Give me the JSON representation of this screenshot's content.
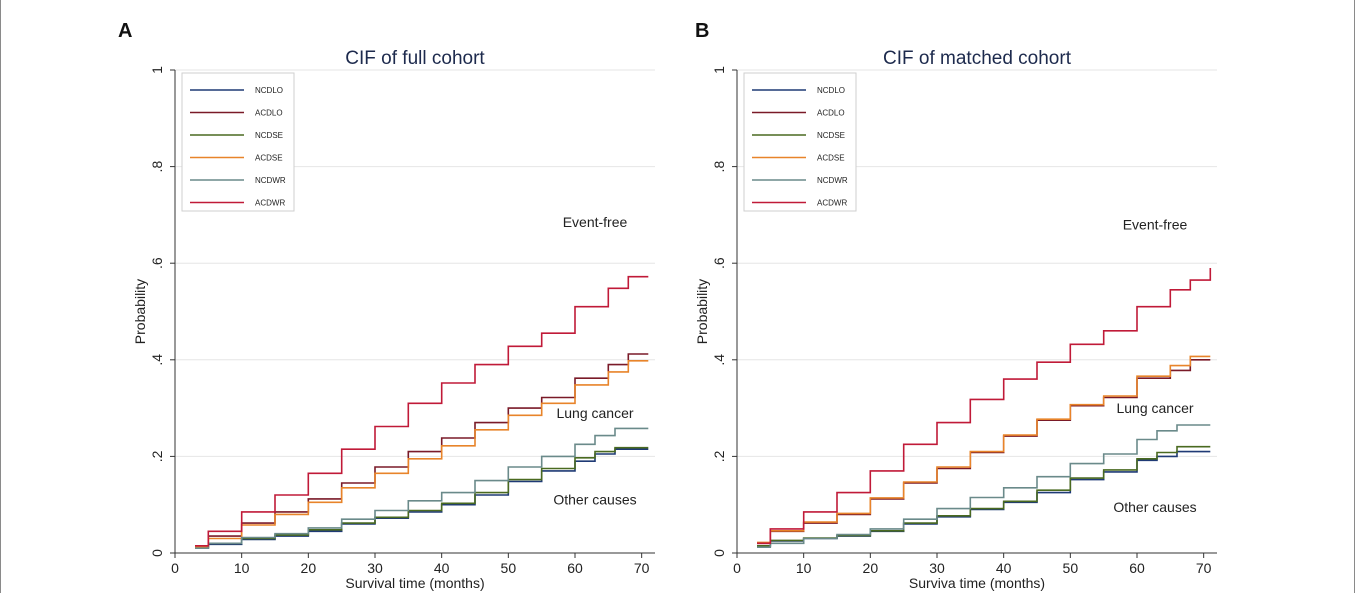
{
  "panels": [
    {
      "letter": "A"
    },
    {
      "letter": "B"
    }
  ],
  "chart_data": [
    {
      "type": "line",
      "step": true,
      "title": "CIF of full cohort",
      "xlabel": "Survival time (months)",
      "ylabel": "Probability",
      "xlim": [
        0,
        72
      ],
      "ylim": [
        0,
        1
      ],
      "xticks": [
        0,
        10,
        20,
        30,
        40,
        50,
        60,
        70
      ],
      "xtick_labels": [
        "0",
        "10",
        "20",
        "30",
        "40",
        "50",
        "60",
        "70"
      ],
      "yticks": [
        0,
        0.2,
        0.4,
        0.6,
        0.8,
        1
      ],
      "ytick_labels": [
        "0",
        ".2",
        ".4",
        ".6",
        ".8",
        "1"
      ],
      "grid": "horizontal",
      "legend_position": "top-left",
      "annotations": [
        {
          "text": "Event-free",
          "x": 61.5,
          "y": 0.675
        },
        {
          "text": "Lung cancer",
          "x": 61.5,
          "y": 0.28
        },
        {
          "text": "Other causes",
          "x": 61.5,
          "y": 0.1
        }
      ],
      "series": [
        {
          "name": "NCDLO",
          "color": "#1f3a75",
          "points": [
            [
              3,
              0.01
            ],
            [
              5,
              0.018
            ],
            [
              10,
              0.028
            ],
            [
              15,
              0.035
            ],
            [
              20,
              0.045
            ],
            [
              25,
              0.06
            ],
            [
              30,
              0.072
            ],
            [
              35,
              0.085
            ],
            [
              40,
              0.1
            ],
            [
              45,
              0.12
            ],
            [
              50,
              0.148
            ],
            [
              55,
              0.17
            ],
            [
              60,
              0.19
            ],
            [
              63,
              0.205
            ],
            [
              66,
              0.215
            ],
            [
              71,
              0.215
            ]
          ]
        },
        {
          "name": "ACDLO",
          "color": "#7a1a28",
          "points": [
            [
              3,
              0.012
            ],
            [
              5,
              0.035
            ],
            [
              10,
              0.062
            ],
            [
              15,
              0.085
            ],
            [
              20,
              0.112
            ],
            [
              25,
              0.145
            ],
            [
              30,
              0.178
            ],
            [
              35,
              0.21
            ],
            [
              40,
              0.238
            ],
            [
              45,
              0.27
            ],
            [
              50,
              0.3
            ],
            [
              55,
              0.322
            ],
            [
              60,
              0.362
            ],
            [
              65,
              0.39
            ],
            [
              68,
              0.412
            ],
            [
              71,
              0.412
            ]
          ]
        },
        {
          "name": "NCDSE",
          "color": "#4a6a20",
          "points": [
            [
              3,
              0.01
            ],
            [
              5,
              0.02
            ],
            [
              10,
              0.03
            ],
            [
              15,
              0.037
            ],
            [
              20,
              0.048
            ],
            [
              25,
              0.062
            ],
            [
              30,
              0.074
            ],
            [
              35,
              0.088
            ],
            [
              40,
              0.103
            ],
            [
              45,
              0.125
            ],
            [
              50,
              0.152
            ],
            [
              55,
              0.175
            ],
            [
              60,
              0.197
            ],
            [
              63,
              0.21
            ],
            [
              66,
              0.218
            ],
            [
              71,
              0.218
            ]
          ]
        },
        {
          "name": "ACDSE",
          "color": "#e8842a",
          "points": [
            [
              3,
              0.012
            ],
            [
              5,
              0.03
            ],
            [
              10,
              0.058
            ],
            [
              15,
              0.08
            ],
            [
              20,
              0.105
            ],
            [
              25,
              0.135
            ],
            [
              30,
              0.165
            ],
            [
              35,
              0.195
            ],
            [
              40,
              0.222
            ],
            [
              45,
              0.255
            ],
            [
              50,
              0.285
            ],
            [
              55,
              0.31
            ],
            [
              60,
              0.348
            ],
            [
              65,
              0.375
            ],
            [
              68,
              0.398
            ],
            [
              71,
              0.398
            ]
          ]
        },
        {
          "name": "NCDWR",
          "color": "#6a8a8a",
          "points": [
            [
              3,
              0.01
            ],
            [
              5,
              0.02
            ],
            [
              10,
              0.032
            ],
            [
              15,
              0.04
            ],
            [
              20,
              0.052
            ],
            [
              25,
              0.07
            ],
            [
              30,
              0.088
            ],
            [
              35,
              0.108
            ],
            [
              40,
              0.125
            ],
            [
              45,
              0.15
            ],
            [
              50,
              0.178
            ],
            [
              55,
              0.2
            ],
            [
              60,
              0.225
            ],
            [
              63,
              0.243
            ],
            [
              66,
              0.258
            ],
            [
              71,
              0.258
            ]
          ]
        },
        {
          "name": "ACDWR",
          "color": "#c01a38",
          "points": [
            [
              3,
              0.015
            ],
            [
              5,
              0.045
            ],
            [
              10,
              0.085
            ],
            [
              15,
              0.12
            ],
            [
              20,
              0.165
            ],
            [
              25,
              0.215
            ],
            [
              30,
              0.262
            ],
            [
              35,
              0.31
            ],
            [
              40,
              0.352
            ],
            [
              45,
              0.39
            ],
            [
              50,
              0.428
            ],
            [
              55,
              0.455
            ],
            [
              60,
              0.51
            ],
            [
              65,
              0.548
            ],
            [
              68,
              0.572
            ],
            [
              71,
              0.572
            ]
          ]
        }
      ]
    },
    {
      "type": "line",
      "step": true,
      "title": "CIF of matched cohort",
      "xlabel": "Surviva time (months)",
      "ylabel": "Probability",
      "xlim": [
        0,
        72
      ],
      "ylim": [
        0,
        1
      ],
      "xticks": [
        0,
        10,
        20,
        30,
        40,
        50,
        60,
        70
      ],
      "xtick_labels": [
        "0",
        "10",
        "20",
        "30",
        "40",
        "50",
        "60",
        "70"
      ],
      "yticks": [
        0,
        0.2,
        0.4,
        0.6,
        0.8,
        1
      ],
      "ytick_labels": [
        "0",
        ".2",
        ".4",
        ".6",
        ".8",
        "1"
      ],
      "grid": "horizontal",
      "legend_position": "top-left",
      "annotations": [
        {
          "text": "Event-free",
          "x": 61.5,
          "y": 0.67
        },
        {
          "text": "Lung cancer",
          "x": 61.5,
          "y": 0.29
        },
        {
          "text": "Other causes",
          "x": 61.5,
          "y": 0.085
        }
      ],
      "series": [
        {
          "name": "NCDLO",
          "color": "#1f3a75",
          "points": [
            [
              3,
              0.015
            ],
            [
              5,
              0.025
            ],
            [
              10,
              0.03
            ],
            [
              15,
              0.035
            ],
            [
              20,
              0.045
            ],
            [
              25,
              0.06
            ],
            [
              30,
              0.075
            ],
            [
              35,
              0.09
            ],
            [
              40,
              0.105
            ],
            [
              45,
              0.125
            ],
            [
              50,
              0.152
            ],
            [
              55,
              0.168
            ],
            [
              60,
              0.192
            ],
            [
              63,
              0.2
            ],
            [
              66,
              0.21
            ],
            [
              71,
              0.21
            ]
          ]
        },
        {
          "name": "ACDLO",
          "color": "#7a1a28",
          "points": [
            [
              3,
              0.02
            ],
            [
              5,
              0.045
            ],
            [
              10,
              0.062
            ],
            [
              15,
              0.08
            ],
            [
              20,
              0.112
            ],
            [
              25,
              0.145
            ],
            [
              30,
              0.175
            ],
            [
              35,
              0.208
            ],
            [
              40,
              0.242
            ],
            [
              45,
              0.275
            ],
            [
              50,
              0.305
            ],
            [
              55,
              0.322
            ],
            [
              60,
              0.362
            ],
            [
              65,
              0.378
            ],
            [
              68,
              0.4
            ],
            [
              71,
              0.4
            ]
          ]
        },
        {
          "name": "NCDSE",
          "color": "#4a6a20",
          "points": [
            [
              3,
              0.015
            ],
            [
              5,
              0.026
            ],
            [
              10,
              0.031
            ],
            [
              15,
              0.036
            ],
            [
              20,
              0.046
            ],
            [
              25,
              0.062
            ],
            [
              30,
              0.077
            ],
            [
              35,
              0.092
            ],
            [
              40,
              0.107
            ],
            [
              45,
              0.13
            ],
            [
              50,
              0.155
            ],
            [
              55,
              0.172
            ],
            [
              60,
              0.195
            ],
            [
              63,
              0.208
            ],
            [
              66,
              0.22
            ],
            [
              71,
              0.22
            ]
          ]
        },
        {
          "name": "ACDSE",
          "color": "#e8842a",
          "points": [
            [
              3,
              0.022
            ],
            [
              5,
              0.046
            ],
            [
              10,
              0.064
            ],
            [
              15,
              0.082
            ],
            [
              20,
              0.114
            ],
            [
              25,
              0.147
            ],
            [
              30,
              0.178
            ],
            [
              35,
              0.21
            ],
            [
              40,
              0.244
            ],
            [
              45,
              0.277
            ],
            [
              50,
              0.307
            ],
            [
              55,
              0.325
            ],
            [
              60,
              0.366
            ],
            [
              65,
              0.388
            ],
            [
              68,
              0.407
            ],
            [
              71,
              0.407
            ]
          ]
        },
        {
          "name": "NCDWR",
          "color": "#6a8a8a",
          "points": [
            [
              3,
              0.012
            ],
            [
              5,
              0.02
            ],
            [
              10,
              0.03
            ],
            [
              15,
              0.038
            ],
            [
              20,
              0.05
            ],
            [
              25,
              0.07
            ],
            [
              30,
              0.092
            ],
            [
              35,
              0.115
            ],
            [
              40,
              0.135
            ],
            [
              45,
              0.158
            ],
            [
              50,
              0.185
            ],
            [
              55,
              0.205
            ],
            [
              60,
              0.235
            ],
            [
              63,
              0.253
            ],
            [
              66,
              0.265
            ],
            [
              71,
              0.265
            ]
          ]
        },
        {
          "name": "ACDWR",
          "color": "#c01a38",
          "points": [
            [
              3,
              0.02
            ],
            [
              5,
              0.05
            ],
            [
              10,
              0.085
            ],
            [
              15,
              0.125
            ],
            [
              20,
              0.17
            ],
            [
              25,
              0.225
            ],
            [
              30,
              0.27
            ],
            [
              35,
              0.318
            ],
            [
              40,
              0.36
            ],
            [
              45,
              0.395
            ],
            [
              50,
              0.432
            ],
            [
              55,
              0.46
            ],
            [
              60,
              0.51
            ],
            [
              65,
              0.545
            ],
            [
              68,
              0.565
            ],
            [
              71,
              0.59
            ]
          ]
        }
      ]
    }
  ]
}
